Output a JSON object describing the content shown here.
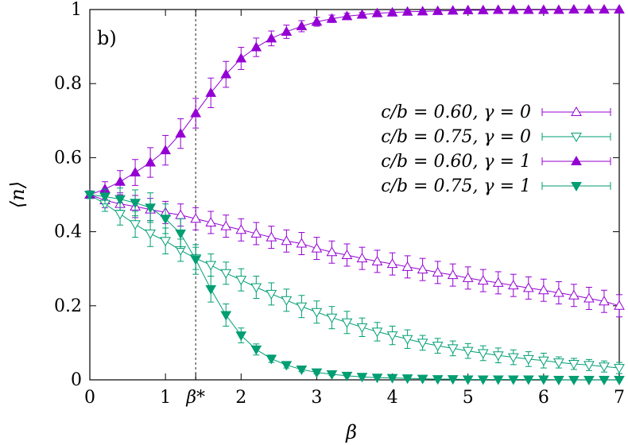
{
  "chart_data": {
    "type": "line",
    "panel_label": "b)",
    "xlabel": "β",
    "ylabel": "⟨n⟩",
    "xlim": [
      0,
      7
    ],
    "ylim": [
      0,
      1
    ],
    "x_ticks": [
      {
        "value": 0,
        "label": "0"
      },
      {
        "value": 1,
        "label": "1"
      },
      {
        "value": 1.4,
        "label": "β*"
      },
      {
        "value": 2,
        "label": "2"
      },
      {
        "value": 3,
        "label": "3"
      },
      {
        "value": 4,
        "label": "4"
      },
      {
        "value": 5,
        "label": "5"
      },
      {
        "value": 6,
        "label": "6"
      },
      {
        "value": 7,
        "label": "7"
      }
    ],
    "y_ticks": [
      {
        "value": 0,
        "label": "0"
      },
      {
        "value": 0.2,
        "label": "0.2"
      },
      {
        "value": 0.4,
        "label": "0.4"
      },
      {
        "value": 0.6,
        "label": "0.6"
      },
      {
        "value": 0.8,
        "label": "0.8"
      },
      {
        "value": 1,
        "label": "1"
      }
    ],
    "vline": {
      "x": 1.4,
      "style": "dotted",
      "color": "#555555"
    },
    "grid": false,
    "legend_position": "right",
    "x": [
      0,
      0.2,
      0.4,
      0.6,
      0.8,
      1.0,
      1.2,
      1.4,
      1.6,
      1.8,
      2.0,
      2.2,
      2.4,
      2.6,
      2.8,
      3.0,
      3.2,
      3.4,
      3.6,
      3.8,
      4.0,
      4.2,
      4.4,
      4.6,
      4.8,
      5.0,
      5.2,
      5.4,
      5.6,
      5.8,
      6.0,
      6.2,
      6.4,
      6.6,
      6.8,
      7.0
    ],
    "series": [
      {
        "name": "c/b = 0.60, γ = 0",
        "color": "#9400d3",
        "marker": "triangle-up-open",
        "values": [
          0.5,
          0.485,
          0.475,
          0.468,
          0.46,
          0.452,
          0.445,
          0.435,
          0.425,
          0.415,
          0.405,
          0.395,
          0.385,
          0.375,
          0.368,
          0.355,
          0.345,
          0.337,
          0.328,
          0.32,
          0.313,
          0.305,
          0.298,
          0.29,
          0.283,
          0.275,
          0.268,
          0.262,
          0.255,
          0.248,
          0.242,
          0.235,
          0.228,
          0.22,
          0.212,
          0.2
        ],
        "errors": [
          0.01,
          0.02,
          0.025,
          0.03,
          0.03,
          0.03,
          0.03,
          0.03,
          0.03,
          0.03,
          0.03,
          0.03,
          0.03,
          0.03,
          0.03,
          0.03,
          0.03,
          0.03,
          0.03,
          0.03,
          0.03,
          0.03,
          0.03,
          0.03,
          0.03,
          0.03,
          0.03,
          0.03,
          0.03,
          0.03,
          0.03,
          0.03,
          0.03,
          0.03,
          0.03,
          0.03
        ]
      },
      {
        "name": "c/b = 0.75, γ = 0",
        "color": "#009e73",
        "marker": "triangle-down-open",
        "values": [
          0.5,
          0.475,
          0.448,
          0.42,
          0.395,
          0.375,
          0.35,
          0.328,
          0.31,
          0.288,
          0.27,
          0.25,
          0.232,
          0.215,
          0.198,
          0.183,
          0.168,
          0.155,
          0.142,
          0.13,
          0.12,
          0.11,
          0.1,
          0.092,
          0.085,
          0.078,
          0.072,
          0.066,
          0.061,
          0.056,
          0.052,
          0.047,
          0.043,
          0.04,
          0.036,
          0.032
        ],
        "errors": [
          0.01,
          0.02,
          0.03,
          0.035,
          0.035,
          0.035,
          0.03,
          0.03,
          0.03,
          0.03,
          0.03,
          0.03,
          0.03,
          0.03,
          0.03,
          0.03,
          0.03,
          0.03,
          0.025,
          0.025,
          0.025,
          0.025,
          0.02,
          0.02,
          0.02,
          0.02,
          0.02,
          0.02,
          0.02,
          0.02,
          0.02,
          0.015,
          0.015,
          0.015,
          0.015,
          0.015
        ]
      },
      {
        "name": "c/b = 0.60, γ = 1",
        "color": "#9400d3",
        "marker": "triangle-up-filled",
        "values": [
          0.5,
          0.515,
          0.535,
          0.56,
          0.587,
          0.62,
          0.665,
          0.72,
          0.775,
          0.825,
          0.868,
          0.898,
          0.922,
          0.94,
          0.955,
          0.967,
          0.975,
          0.982,
          0.986,
          0.99,
          0.992,
          0.994,
          0.995,
          0.996,
          0.997,
          0.998,
          0.998,
          0.999,
          0.999,
          0.999,
          0.999,
          0.999,
          1.0,
          1.0,
          1.0,
          1.0
        ],
        "errors": [
          0.01,
          0.02,
          0.03,
          0.035,
          0.04,
          0.04,
          0.04,
          0.04,
          0.04,
          0.035,
          0.03,
          0.025,
          0.02,
          0.018,
          0.015,
          0.012,
          0.01,
          0.008,
          0.006,
          0.005,
          0.004,
          0.003,
          0.003,
          0.002,
          0.002,
          0.002,
          0.001,
          0.001,
          0.001,
          0.001,
          0.001,
          0.001,
          0.001,
          0.001,
          0.001,
          0.001
        ]
      },
      {
        "name": "c/b = 0.75, γ = 1",
        "color": "#009e73",
        "marker": "triangle-down-filled",
        "values": [
          0.5,
          0.495,
          0.488,
          0.478,
          0.465,
          0.435,
          0.395,
          0.325,
          0.245,
          0.175,
          0.12,
          0.082,
          0.057,
          0.04,
          0.028,
          0.02,
          0.015,
          0.011,
          0.008,
          0.006,
          0.005,
          0.004,
          0.003,
          0.002,
          0.002,
          0.001,
          0.001,
          0.001,
          0.001,
          0.001,
          0.001,
          0.0,
          0.0,
          0.0,
          0.0,
          0.0
        ],
        "errors": [
          0.01,
          0.02,
          0.03,
          0.035,
          0.04,
          0.04,
          0.04,
          0.04,
          0.035,
          0.03,
          0.02,
          0.015,
          0.01,
          0.008,
          0.006,
          0.004,
          0.003,
          0.002,
          0.002,
          0.001,
          0.001,
          0.001,
          0.001,
          0.001,
          0.001,
          0.001,
          0.001,
          0.001,
          0.001,
          0.001,
          0.001,
          0.001,
          0.001,
          0.001,
          0.001,
          0.001
        ]
      }
    ]
  }
}
